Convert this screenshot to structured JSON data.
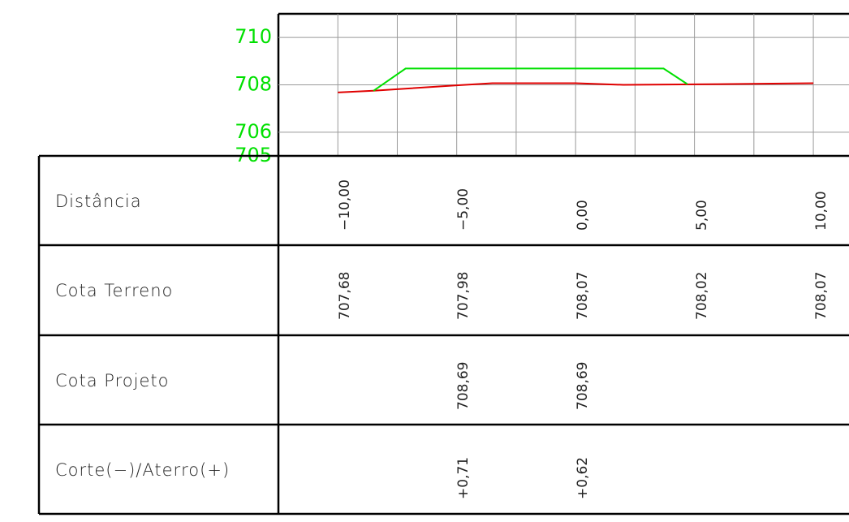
{
  "chart_data": {
    "type": "line",
    "xlim": [
      -12.5,
      11.5
    ],
    "ylim": [
      705,
      711
    ],
    "xticks": [
      -10,
      -7.5,
      -5,
      -2.5,
      0,
      2.5,
      5,
      7.5,
      10
    ],
    "yticks": [
      705,
      706,
      708,
      710
    ],
    "grid": true,
    "tick_color": "#00e000",
    "series": [
      {
        "color": "#e00000",
        "x": [
          -10,
          -8.5,
          -5,
          -3.5,
          0,
          2,
          5,
          10
        ],
        "values": [
          707.68,
          707.75,
          707.98,
          708.07,
          708.07,
          708.0,
          708.02,
          708.07
        ]
      },
      {
        "color": "#00e000",
        "x": [
          -8.5,
          -7.15,
          3.7,
          4.7
        ],
        "values": [
          707.75,
          708.69,
          708.69,
          708.03
        ]
      }
    ]
  },
  "table": {
    "rows": [
      {
        "label": "Distância",
        "cells": [
          "−10,00",
          "−5,00",
          "0,00",
          "5,00",
          "10,00"
        ]
      },
      {
        "label": "Cota Terreno",
        "cells": [
          "707,68",
          "707,98",
          "708,07",
          "708,02",
          "708,07"
        ]
      },
      {
        "label": "Cota Projeto",
        "cells": [
          null,
          "708,69",
          "708,69",
          null,
          null
        ]
      },
      {
        "label": "Corte(−)/Aterro(+)",
        "cells": [
          null,
          "+0,71",
          "+0,62",
          null,
          null
        ]
      }
    ]
  }
}
